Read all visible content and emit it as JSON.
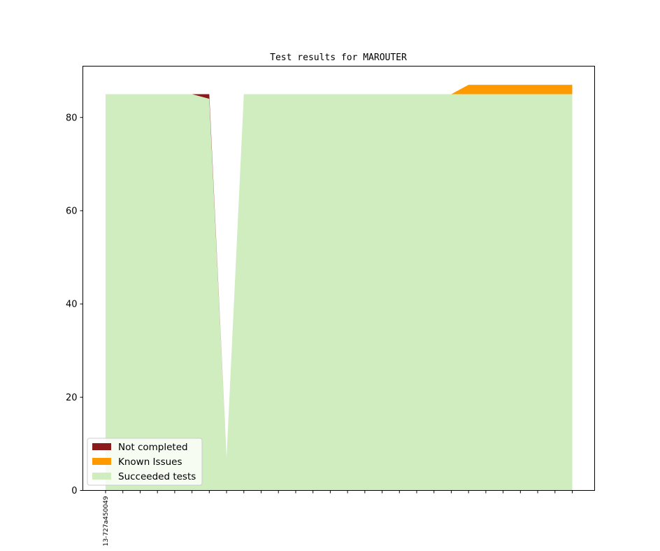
{
  "chart_data": {
    "type": "area",
    "stacked": true,
    "title": "Test results for MAROUTER",
    "xlabel": "",
    "ylabel": "",
    "ylim": [
      0,
      91
    ],
    "yticks": [
      0,
      20,
      40,
      60,
      80
    ],
    "x_tick_count": 28,
    "x_tick_labels": [
      {
        "index": 0,
        "label": "13-727a450049"
      }
    ],
    "series": [
      {
        "name": "Succeeded tests",
        "color": "#cfedbf",
        "values": [
          85,
          85,
          85,
          85,
          85,
          85,
          84,
          7,
          85,
          85,
          85,
          85,
          85,
          85,
          85,
          85,
          85,
          85,
          85,
          85,
          85,
          85,
          85,
          85,
          85,
          85,
          85,
          85
        ]
      },
      {
        "name": "Known Issues",
        "color": "#ff9900",
        "values": [
          0,
          0,
          0,
          0,
          0,
          0,
          0,
          0,
          0,
          0,
          0,
          0,
          0,
          0,
          0,
          0,
          0,
          0,
          0,
          0,
          0,
          2,
          2,
          2,
          2,
          2,
          2,
          2
        ]
      },
      {
        "name": "Not completed",
        "color": "#8b1a1a",
        "values": [
          0,
          0,
          0,
          0,
          0,
          0,
          1,
          0,
          0,
          0,
          0,
          0,
          0,
          0,
          0,
          0,
          0,
          0,
          0,
          0,
          0,
          0,
          0,
          0,
          0,
          0,
          0,
          0
        ]
      }
    ],
    "legend": {
      "position": "lower-left",
      "entries": [
        "Not completed",
        "Known Issues",
        "Succeeded tests"
      ]
    }
  }
}
